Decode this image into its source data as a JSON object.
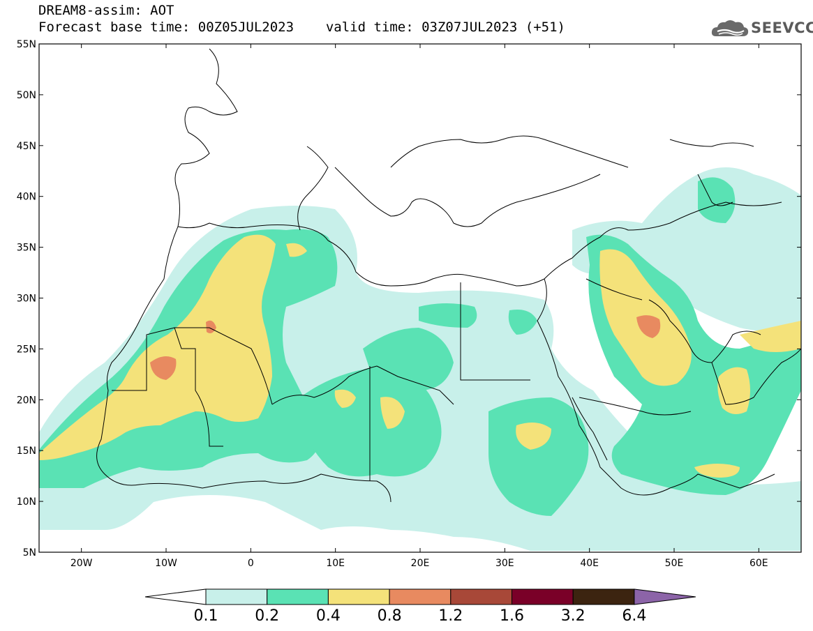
{
  "header": {
    "title": "DREAM8-assim: AOT",
    "forecast_base": "Forecast base time: 00Z05JUL2023",
    "valid_time": "valid time: 03Z07JUL2023 (+51)",
    "logo_text": "SEEVCCC"
  },
  "map": {
    "type": "map",
    "projection": "cylindrical",
    "lon_range": [
      -25,
      65
    ],
    "lat_range": [
      5,
      55
    ],
    "lat_ticks": [
      "55N",
      "50N",
      "45N",
      "40N",
      "35N",
      "30N",
      "25N",
      "20N",
      "15N",
      "10N",
      "5N"
    ],
    "lon_ticks": [
      "20W",
      "10W",
      "0",
      "10E",
      "20E",
      "30E",
      "40E",
      "50E",
      "60E"
    ],
    "lat_tick_values": [
      55,
      50,
      45,
      40,
      35,
      30,
      25,
      20,
      15,
      10,
      5
    ],
    "lon_tick_values": [
      -20,
      -10,
      0,
      10,
      20,
      30,
      40,
      50,
      60
    ],
    "colors": {
      "lvl1": "#c8f0ea",
      "lvl2": "#5ae2b4",
      "lvl3": "#f4e27a",
      "lvl4": "#e88a60",
      "lvl5": "#a84838",
      "lvl6": "#7a0028",
      "lvl7": "#3c2410",
      "lvl8": "#8c64a8",
      "border": "#000000"
    }
  },
  "colorbar": {
    "labels": [
      "0.1",
      "0.2",
      "0.4",
      "0.8",
      "1.2",
      "1.6",
      "3.2",
      "6.4"
    ],
    "colors": [
      "#c8f0ea",
      "#5ae2b4",
      "#f4e27a",
      "#e88a60",
      "#a84838",
      "#7a0028",
      "#3c2410"
    ],
    "over_color": "#8c64a8",
    "under_color": "#ffffff"
  }
}
